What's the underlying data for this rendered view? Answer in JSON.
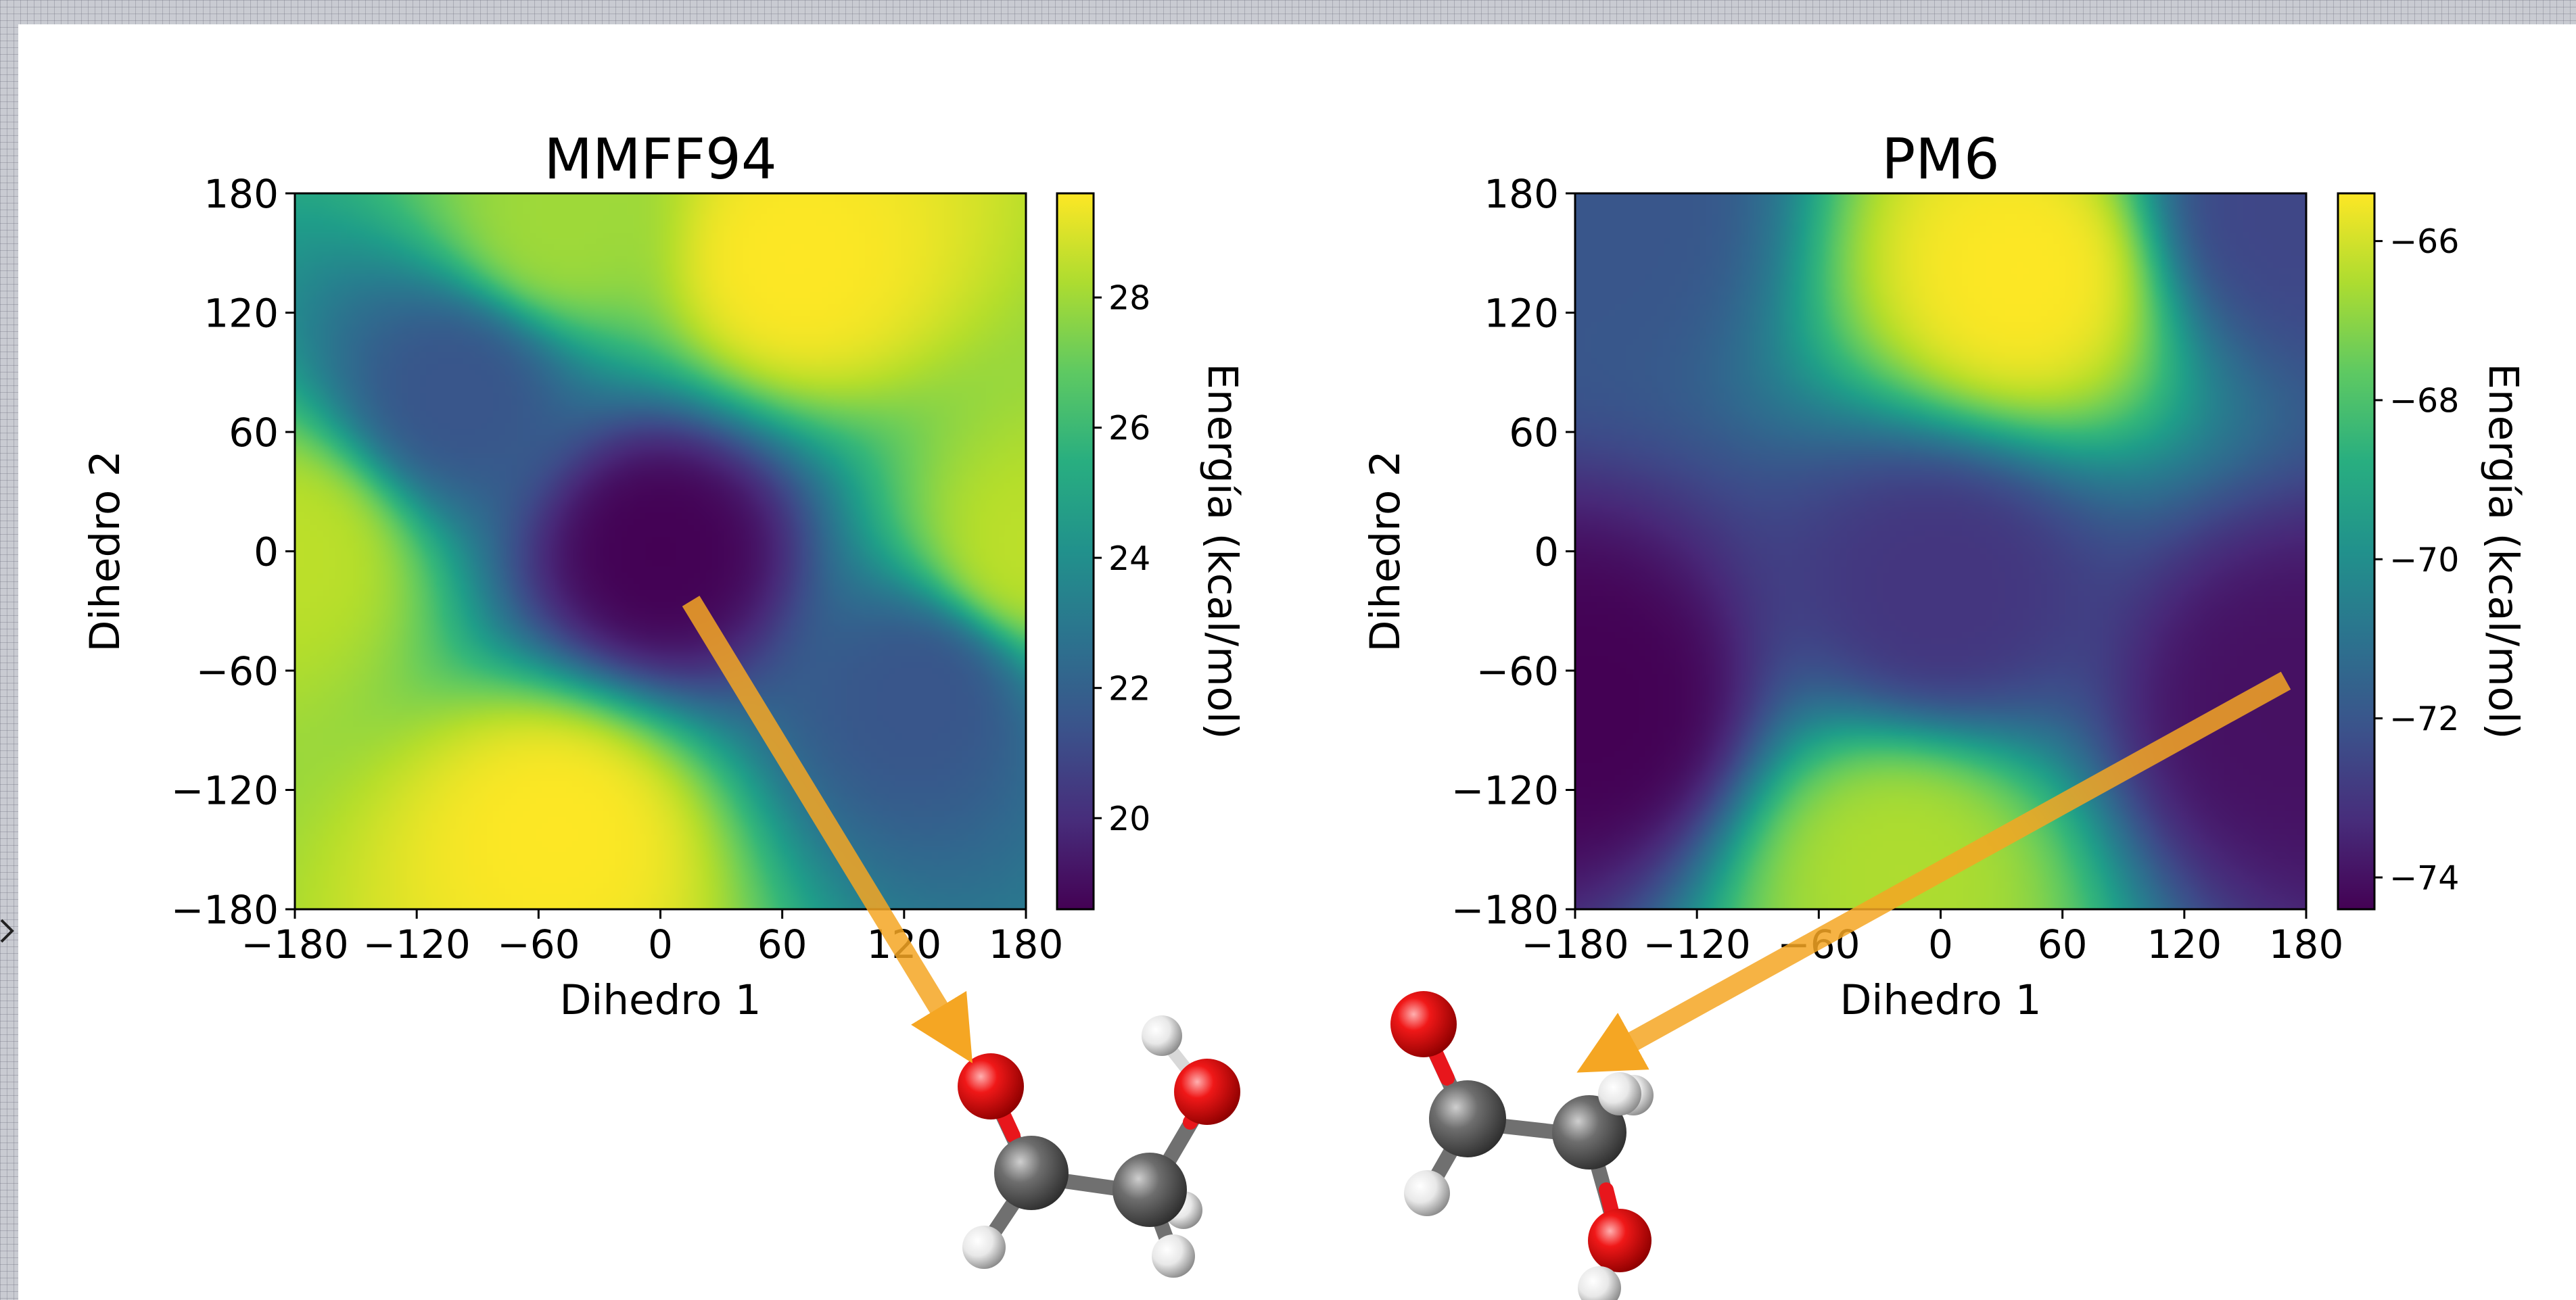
{
  "chart_data": [
    {
      "type": "heatmap",
      "title": "MMFF94",
      "xlabel": "Dihedro 1",
      "ylabel": "Dihedro 2",
      "xlim": [
        -180,
        180
      ],
      "ylim": [
        -180,
        180
      ],
      "xticks": [
        -180,
        -120,
        -60,
        0,
        60,
        120,
        180
      ],
      "yticks": [
        -180,
        -120,
        -60,
        0,
        60,
        120,
        180
      ],
      "xtick_labels": [
        "−180",
        "−120",
        "−60",
        "0",
        "60",
        "120",
        "180"
      ],
      "ytick_labels": [
        "−180",
        "−120",
        "−60",
        "0",
        "60",
        "120",
        "180"
      ],
      "colormap": "viridis",
      "colorbar_label": "Energía (kcal/mol)",
      "clim": [
        18.6,
        29.6
      ],
      "colorbar_ticks": [
        20,
        22,
        24,
        26,
        28
      ],
      "colorbar_tick_labels": [
        "20",
        "22",
        "24",
        "26",
        "28"
      ],
      "features": [
        {
          "x": 0,
          "y": 0,
          "value": 18.6
        },
        {
          "x": 65,
          "y": 145,
          "value": 29.6
        },
        {
          "x": -50,
          "y": -140,
          "value": 29.6
        },
        {
          "x": -180,
          "y": 0,
          "value": 28.5
        },
        {
          "x": 180,
          "y": 0,
          "value": 28.5
        },
        {
          "x": -50,
          "y": 165,
          "value": 28.0
        },
        {
          "x": -100,
          "y": 80,
          "value": 21.5
        },
        {
          "x": 130,
          "y": -70,
          "value": 21.5
        }
      ],
      "annotation": {
        "from": [
          15,
          -25
        ],
        "to": "structure-1",
        "color": "#f5a623"
      }
    },
    {
      "type": "heatmap",
      "title": "PM6",
      "xlabel": "Dihedro 1",
      "ylabel": "Dihedro 2",
      "xlim": [
        -180,
        180
      ],
      "ylim": [
        -180,
        180
      ],
      "xticks": [
        -180,
        -120,
        -60,
        0,
        60,
        120,
        180
      ],
      "yticks": [
        -180,
        -120,
        -60,
        0,
        60,
        120,
        180
      ],
      "xtick_labels": [
        "−180",
        "−120",
        "−60",
        "0",
        "60",
        "120",
        "180"
      ],
      "ytick_labels": [
        "−180",
        "−120",
        "−60",
        "0",
        "60",
        "120",
        "180"
      ],
      "colormap": "viridis",
      "colorbar_label": "Energía (kcal/mol)",
      "clim": [
        -74.4,
        -65.4
      ],
      "colorbar_ticks": [
        -66,
        -68,
        -70,
        -72,
        -74
      ],
      "colorbar_tick_labels": [
        "−66",
        "−68",
        "−70",
        "−72",
        "−74"
      ],
      "features": [
        {
          "x": -170,
          "y": -80,
          "value": -74.4
        },
        {
          "x": 170,
          "y": -80,
          "value": -74.0
        },
        {
          "x": 0,
          "y": -20,
          "value": -73.0
        },
        {
          "x": 40,
          "y": 140,
          "value": -65.4
        },
        {
          "x": -20,
          "y": -160,
          "value": -66.5
        },
        {
          "x": 170,
          "y": 170,
          "value": -72.5
        },
        {
          "x": -170,
          "y": 170,
          "value": -72.0
        }
      ],
      "annotation": {
        "from": [
          170,
          -65
        ],
        "to": "structure-2",
        "color": "#f5a623"
      }
    }
  ],
  "structures": {
    "atom_colors": {
      "oxygen": "#e8161c",
      "carbon": "#6e6e6e",
      "hydrogen": "#f2f2f2",
      "bond": "#707070"
    }
  }
}
